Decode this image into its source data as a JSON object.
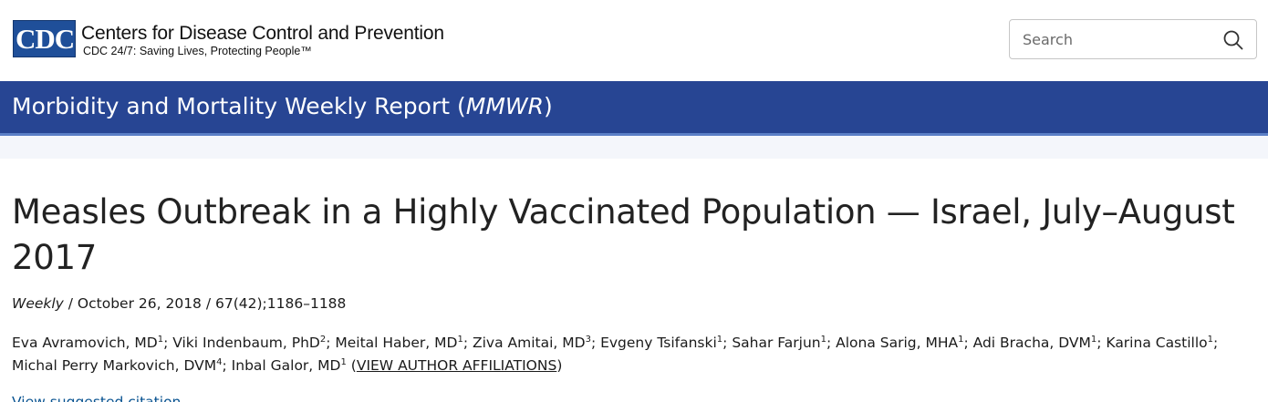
{
  "header": {
    "logo_text": "CDC",
    "org_name": "Centers for Disease Control and Prevention",
    "tagline": "CDC 24/7: Saving Lives, Protecting People™",
    "search": {
      "placeholder": "Search",
      "value": ""
    },
    "search_icon": "magnifier-icon"
  },
  "banner": {
    "title_prefix": "Morbidity and Mortality Weekly Report (",
    "title_abbrev": "MMWR",
    "title_suffix": ")"
  },
  "article": {
    "title": "Measles Outbreak in a Highly Vaccinated Population — Israel, July–August 2017",
    "pub_type": "Weekly",
    "pub_details": " / October 26, 2018 / 67(42);1186–1188",
    "authors": [
      {
        "name": "Eva Avramovich, MD",
        "sup": "1"
      },
      {
        "name": "Viki Indenbaum, PhD",
        "sup": "2"
      },
      {
        "name": "Meital Haber, MD",
        "sup": "1"
      },
      {
        "name": "Ziva Amitai, MD",
        "sup": "3"
      },
      {
        "name": "Evgeny Tsifanski",
        "sup": "1"
      },
      {
        "name": "Sahar Farjun",
        "sup": "1"
      },
      {
        "name": "Alona Sarig, MHA",
        "sup": "1"
      },
      {
        "name": "Adi Bracha, DVM",
        "sup": "1"
      },
      {
        "name": "Karina Castillo",
        "sup": "1"
      },
      {
        "name": "Michal Perry Markovich, DVM",
        "sup": "4"
      },
      {
        "name": "Inbal Galor, MD",
        "sup": "1"
      }
    ],
    "affiliations_link": "VIEW AUTHOR AFFILIATIONS",
    "citation_link": "View suggested citation"
  },
  "colors": {
    "brand_blue": "#274593",
    "logo_blue": "#1f4f99",
    "link_blue": "#075290"
  }
}
